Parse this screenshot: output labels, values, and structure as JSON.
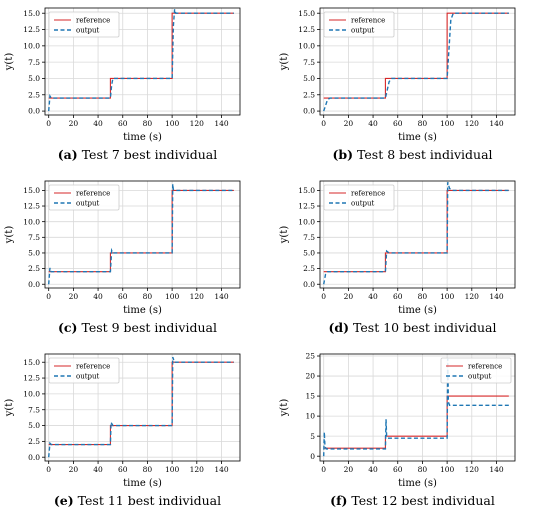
{
  "charts_meta": {
    "colors": {
      "reference": "#d62728",
      "output": "#1f77b4",
      "grid": "#d9d9d9"
    }
  },
  "chart_data": [
    {
      "type": "line",
      "caption_letter": "(a)",
      "caption_text": "Test 7 best individual",
      "xlabel": "time (s)",
      "ylabel": "y(t)",
      "xlim": [
        -3,
        155
      ],
      "ylim": [
        -0.6,
        15.8
      ],
      "xticks": [
        0,
        20,
        40,
        60,
        80,
        100,
        120,
        140
      ],
      "yticks": [
        0.0,
        2.5,
        5.0,
        7.5,
        10.0,
        12.5,
        15.0
      ],
      "ytick_labels": [
        "0.0",
        "2.5",
        "5.0",
        "7.5",
        "10.0",
        "12.5",
        "15.0"
      ],
      "grid": true,
      "legend": "top-left",
      "series": [
        {
          "name": "reference",
          "style": "solid",
          "x": [
            0,
            50,
            50,
            100,
            100,
            150
          ],
          "y": [
            2,
            2,
            5,
            5,
            15,
            15
          ]
        },
        {
          "name": "output",
          "style": "dashed",
          "x": [
            0,
            1,
            2,
            50,
            51,
            52,
            100,
            101,
            102,
            103,
            150
          ],
          "y": [
            0,
            2.3,
            2.0,
            2.0,
            4.0,
            5.0,
            5.0,
            13.0,
            15.6,
            15.0,
            15.0
          ]
        }
      ]
    },
    {
      "type": "line",
      "caption_letter": "(b)",
      "caption_text": "Test 8 best individual",
      "xlabel": "time (s)",
      "ylabel": "y(t)",
      "xlim": [
        -3,
        155
      ],
      "ylim": [
        -0.6,
        15.8
      ],
      "xticks": [
        0,
        20,
        40,
        60,
        80,
        100,
        120,
        140
      ],
      "yticks": [
        0.0,
        2.5,
        5.0,
        7.5,
        10.0,
        12.5,
        15.0
      ],
      "ytick_labels": [
        "0.0",
        "2.5",
        "5.0",
        "7.5",
        "10.0",
        "12.5",
        "15.0"
      ],
      "grid": true,
      "legend": "top-left",
      "series": [
        {
          "name": "reference",
          "style": "solid",
          "x": [
            0,
            50,
            50,
            100,
            100,
            150
          ],
          "y": [
            2,
            2,
            5,
            5,
            15,
            15
          ]
        },
        {
          "name": "output",
          "style": "dashed",
          "x": [
            0,
            3,
            5,
            50,
            53,
            55,
            100,
            103,
            105,
            150
          ],
          "y": [
            0,
            1.7,
            2.0,
            2.0,
            4.5,
            5.0,
            5.0,
            14.0,
            15.0,
            15.0
          ]
        }
      ]
    },
    {
      "type": "line",
      "caption_letter": "(c)",
      "caption_text": "Test 9 best individual",
      "xlabel": "time (s)",
      "ylabel": "y(t)",
      "xlim": [
        -3,
        155
      ],
      "ylim": [
        -0.6,
        16.5
      ],
      "xticks": [
        0,
        20,
        40,
        60,
        80,
        100,
        120,
        140
      ],
      "yticks": [
        0.0,
        2.5,
        5.0,
        7.5,
        10.0,
        12.5,
        15.0
      ],
      "ytick_labels": [
        "0.0",
        "2.5",
        "5.0",
        "7.5",
        "10.0",
        "12.5",
        "15.0"
      ],
      "grid": true,
      "legend": "top-left",
      "series": [
        {
          "name": "reference",
          "style": "solid",
          "x": [
            0,
            50,
            50,
            100,
            100,
            150
          ],
          "y": [
            2,
            2,
            5,
            5,
            15,
            15
          ]
        },
        {
          "name": "output",
          "style": "dashed",
          "x": [
            0,
            1,
            2,
            50,
            51,
            52,
            100,
            100.5,
            101,
            102,
            150
          ],
          "y": [
            0,
            2.6,
            2.0,
            2.0,
            5.4,
            5.0,
            5.0,
            16.0,
            15.1,
            15.0,
            15.0
          ]
        }
      ]
    },
    {
      "type": "line",
      "caption_letter": "(d)",
      "caption_text": "Test 10 best individual",
      "xlabel": "time (s)",
      "ylabel": "y(t)",
      "xlim": [
        -3,
        155
      ],
      "ylim": [
        -0.6,
        16.5
      ],
      "xticks": [
        0,
        20,
        40,
        60,
        80,
        100,
        120,
        140
      ],
      "yticks": [
        0.0,
        2.5,
        5.0,
        7.5,
        10.0,
        12.5,
        15.0
      ],
      "ytick_labels": [
        "0.0",
        "2.5",
        "5.0",
        "7.5",
        "10.0",
        "12.5",
        "15.0"
      ],
      "grid": true,
      "legend": "top-left",
      "series": [
        {
          "name": "reference",
          "style": "solid",
          "x": [
            0,
            50,
            50,
            100,
            100,
            150
          ],
          "y": [
            2,
            2,
            5,
            5,
            15,
            15
          ]
        },
        {
          "name": "output",
          "style": "dashed",
          "x": [
            0,
            1.5,
            3,
            50,
            51,
            53,
            100,
            100.5,
            102,
            104,
            150
          ],
          "y": [
            0,
            1.6,
            2.0,
            2.0,
            5.3,
            5.0,
            5.0,
            16.3,
            15.3,
            15.0,
            15.0
          ]
        }
      ]
    },
    {
      "type": "line",
      "caption_letter": "(e)",
      "caption_text": "Test 11 best individual",
      "xlabel": "time (s)",
      "ylabel": "y(t)",
      "xlim": [
        -3,
        155
      ],
      "ylim": [
        -0.6,
        16.3
      ],
      "xticks": [
        0,
        20,
        40,
        60,
        80,
        100,
        120,
        140
      ],
      "yticks": [
        0.0,
        2.5,
        5.0,
        7.5,
        10.0,
        12.5,
        15.0
      ],
      "ytick_labels": [
        "0.0",
        "2.5",
        "5.0",
        "7.5",
        "10.0",
        "12.5",
        "15.0"
      ],
      "grid": true,
      "legend": "top-left",
      "series": [
        {
          "name": "reference",
          "style": "solid",
          "x": [
            0,
            50,
            50,
            100,
            100,
            150
          ],
          "y": [
            2,
            2,
            5,
            5,
            15,
            15
          ]
        },
        {
          "name": "output",
          "style": "dashed",
          "x": [
            0,
            1,
            2,
            50,
            50.5,
            52,
            100,
            100.5,
            102,
            150
          ],
          "y": [
            0,
            2.2,
            2.0,
            2.0,
            5.5,
            5.0,
            5.0,
            15.8,
            15.0,
            15.0
          ]
        }
      ]
    },
    {
      "type": "line",
      "caption_letter": "(f)",
      "caption_text": "Test 12 best individual",
      "xlabel": "time (s)",
      "ylabel": "y(t)",
      "xlim": [
        -3,
        155
      ],
      "ylim": [
        -1.2,
        25.5
      ],
      "xticks": [
        0,
        20,
        40,
        60,
        80,
        100,
        120,
        140
      ],
      "yticks": [
        0,
        5,
        10,
        15,
        20,
        25
      ],
      "ytick_labels": [
        "0",
        "5",
        "10",
        "15",
        "20",
        "25"
      ],
      "grid": true,
      "legend": "top-right",
      "series": [
        {
          "name": "reference",
          "style": "solid",
          "x": [
            0,
            50,
            50,
            100,
            100,
            150
          ],
          "y": [
            2,
            2,
            5,
            5,
            15,
            15
          ]
        },
        {
          "name": "output",
          "style": "dashed",
          "x": [
            0,
            0.5,
            1,
            2,
            50,
            50.5,
            51,
            52,
            100,
            100.5,
            101,
            102,
            150
          ],
          "y": [
            0,
            6.0,
            2.5,
            1.8,
            1.8,
            9.2,
            4.8,
            4.5,
            4.5,
            24.3,
            13.5,
            12.7,
            12.7
          ]
        }
      ]
    }
  ]
}
